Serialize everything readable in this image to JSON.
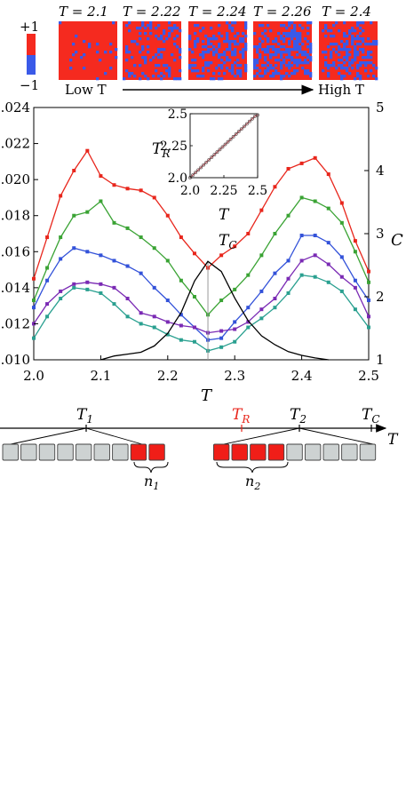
{
  "legend_bar": {
    "plus": "+1",
    "minus": "−1",
    "up_color": "#f52a1f",
    "down_color": "#3a5ae8"
  },
  "snapshots": {
    "titles": [
      "T = 2.1",
      "T = 2.22",
      "T = 2.24",
      "T = 2.26",
      "T = 2.4"
    ],
    "blue_fractions": [
      0.05,
      0.2,
      0.35,
      0.5,
      0.35
    ],
    "low_label": "Low T",
    "high_label": "High T"
  },
  "main_plot": {
    "xlabel": "T",
    "right_label": "C",
    "tc_label": "T",
    "tc_sub": "C"
  },
  "inset": {
    "ylabel": "T",
    "ylabel_sub": "R",
    "xlabel": "T"
  },
  "chart_data": [
    {
      "type": "line",
      "title": "",
      "xlabel": "T",
      "ylabel": "",
      "xlim": [
        2.0,
        2.5
      ],
      "ylim": [
        0.01,
        0.024
      ],
      "x_ticks": [
        2.0,
        2.1,
        2.2,
        2.3,
        2.4,
        2.5
      ],
      "x_tick_labels": [
        "2.0",
        "2.1",
        "2.2",
        "2.3",
        "2.4",
        "2.5"
      ],
      "y_ticks": [
        0.01,
        0.012,
        0.014,
        0.016,
        0.018,
        0.02,
        0.022,
        0.024
      ],
      "y_tick_labels": [
        ".010",
        ".012",
        ".014",
        ".016",
        ".018",
        ".020",
        ".022",
        ".024"
      ],
      "x": [
        2.0,
        2.02,
        2.04,
        2.06,
        2.08,
        2.1,
        2.12,
        2.14,
        2.16,
        2.18,
        2.2,
        2.22,
        2.24,
        2.26,
        2.28,
        2.3,
        2.32,
        2.34,
        2.36,
        2.38,
        2.4,
        2.42,
        2.44,
        2.46,
        2.48,
        2.5
      ],
      "series": [
        {
          "color": "#e8261c",
          "values": [
            0.0145,
            0.0168,
            0.0191,
            0.0205,
            0.0216,
            0.0202,
            0.0197,
            0.0195,
            0.0194,
            0.019,
            0.018,
            0.0168,
            0.0159,
            0.0151,
            0.0158,
            0.0163,
            0.017,
            0.0183,
            0.0196,
            0.0206,
            0.0209,
            0.0212,
            0.0203,
            0.0187,
            0.0166,
            0.0149
          ]
        },
        {
          "color": "#3aa334",
          "values": [
            0.0133,
            0.0151,
            0.0168,
            0.018,
            0.0182,
            0.0188,
            0.0176,
            0.0173,
            0.0168,
            0.0162,
            0.0155,
            0.0144,
            0.0135,
            0.0125,
            0.0133,
            0.0139,
            0.0147,
            0.0158,
            0.017,
            0.018,
            0.019,
            0.0188,
            0.0184,
            0.0176,
            0.016,
            0.0143
          ]
        },
        {
          "color": "#3352d9",
          "values": [
            0.0129,
            0.0144,
            0.0156,
            0.0162,
            0.016,
            0.0158,
            0.0155,
            0.0152,
            0.0148,
            0.014,
            0.0133,
            0.0125,
            0.0118,
            0.0111,
            0.0112,
            0.0121,
            0.0129,
            0.0138,
            0.0148,
            0.0155,
            0.0169,
            0.0169,
            0.0165,
            0.0157,
            0.0144,
            0.0133
          ]
        },
        {
          "color": "#7a2ab4",
          "values": [
            0.012,
            0.0131,
            0.0138,
            0.0142,
            0.0143,
            0.0142,
            0.014,
            0.0134,
            0.0126,
            0.0124,
            0.0121,
            0.0119,
            0.0118,
            0.0115,
            0.0116,
            0.0117,
            0.0121,
            0.0128,
            0.0134,
            0.0145,
            0.0155,
            0.0158,
            0.0153,
            0.0146,
            0.014,
            0.0124
          ]
        },
        {
          "color": "#2aa090",
          "values": [
            0.0112,
            0.0124,
            0.0134,
            0.014,
            0.0139,
            0.0137,
            0.0131,
            0.0124,
            0.012,
            0.0118,
            0.0114,
            0.0111,
            0.011,
            0.0105,
            0.0107,
            0.011,
            0.0118,
            0.0123,
            0.0129,
            0.0137,
            0.0147,
            0.0146,
            0.0143,
            0.0138,
            0.0128,
            0.0118
          ]
        }
      ]
    },
    {
      "type": "line",
      "title": "",
      "right_axis": true,
      "ylabel": "C",
      "ylim": [
        1,
        5
      ],
      "y_ticks": [
        1,
        2,
        3,
        4,
        5
      ],
      "y_tick_labels": [
        "1",
        "2",
        "3",
        "4",
        "5"
      ],
      "x": [
        2.1,
        2.12,
        2.14,
        2.16,
        2.18,
        2.2,
        2.22,
        2.24,
        2.26,
        2.28,
        2.3,
        2.32,
        2.34,
        2.36,
        2.38,
        2.4,
        2.42,
        2.44
      ],
      "series": [
        {
          "color": "#000000",
          "values": [
            1.0,
            1.06,
            1.09,
            1.12,
            1.22,
            1.42,
            1.75,
            2.25,
            2.56,
            2.4,
            1.98,
            1.62,
            1.38,
            1.24,
            1.13,
            1.07,
            1.03,
            1.0
          ]
        }
      ],
      "vertical_line_x": 2.26
    },
    {
      "type": "line",
      "title": "",
      "xlabel": "T",
      "ylabel": "T_R",
      "xlim": [
        2.0,
        2.5
      ],
      "ylim": [
        2.0,
        2.5
      ],
      "x_ticks": [
        2.0,
        2.25,
        2.5
      ],
      "x_tick_labels": [
        "2.0",
        "2.25",
        "2.5"
      ],
      "y_ticks": [
        2.0,
        2.25,
        2.5
      ],
      "y_tick_labels": [
        "2.0",
        "2.25",
        "2.5"
      ],
      "x": [
        2.0,
        2.02,
        2.04,
        2.06,
        2.08,
        2.1,
        2.12,
        2.14,
        2.16,
        2.18,
        2.2,
        2.22,
        2.24,
        2.26,
        2.28,
        2.3,
        2.32,
        2.34,
        2.36,
        2.38,
        2.4,
        2.42,
        2.44,
        2.46,
        2.48,
        2.5
      ],
      "series": [
        {
          "color": "#b3525a",
          "values": [
            2.0,
            2.02,
            2.04,
            2.06,
            2.08,
            2.1,
            2.12,
            2.14,
            2.16,
            2.18,
            2.2,
            2.22,
            2.24,
            2.26,
            2.28,
            2.3,
            2.32,
            2.34,
            2.36,
            2.38,
            2.4,
            2.42,
            2.44,
            2.46,
            2.48,
            2.49
          ]
        }
      ]
    }
  ],
  "bottom_diagram": {
    "labels": {
      "t1": "T",
      "t1_sub": "1",
      "tr": "T",
      "tr_sub": "R",
      "t2": "T",
      "t2_sub": "2",
      "tc": "T",
      "tc_sub": "C",
      "axis": "T",
      "n1": "n",
      "n1_sub": "1",
      "n2": "n",
      "n2_sub": "2"
    },
    "tr_color": "#e8261c",
    "grey_color": "#cdd2d2",
    "red_color": "#f01e18",
    "box_colors": [
      "grey",
      "grey",
      "grey",
      "grey",
      "grey",
      "grey",
      "grey",
      "red",
      "red",
      "gap",
      "red",
      "red",
      "red",
      "red",
      "grey",
      "grey",
      "grey",
      "grey",
      "grey"
    ]
  }
}
